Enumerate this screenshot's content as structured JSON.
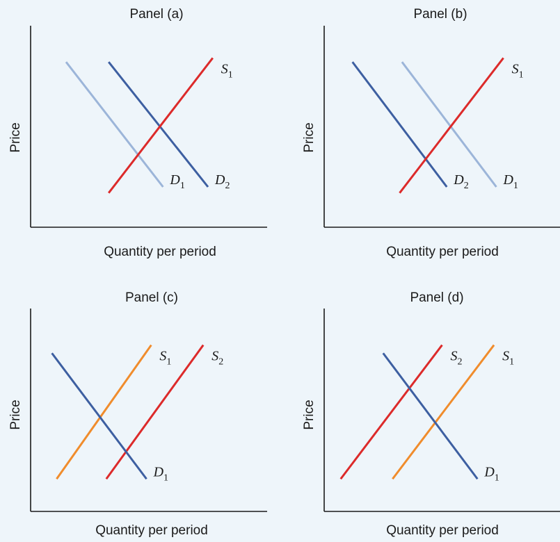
{
  "figure": {
    "colors": {
      "background": "#eef5fa",
      "axis": "#1a1a1a"
    }
  },
  "chart_data": [
    {
      "type": "line",
      "title": "Panel (a)",
      "xlabel": "Quantity per period",
      "ylabel": "Price",
      "grid": false,
      "xlim": [
        0,
        10
      ],
      "ylim": [
        0,
        10
      ],
      "series": [
        {
          "name": "D1",
          "label_main": "D",
          "label_sub": "1",
          "color": "#9cb5d9",
          "x": [
            1.5,
            5.6
          ],
          "y": [
            8.2,
            2.0
          ]
        },
        {
          "name": "D2",
          "label_main": "D",
          "label_sub": "2",
          "color": "#3d5fa1",
          "x": [
            3.3,
            7.5
          ],
          "y": [
            8.2,
            2.0
          ]
        },
        {
          "name": "S1",
          "label_main": "S",
          "label_sub": "1",
          "color": "#dc2a2a",
          "x": [
            3.3,
            7.7
          ],
          "y": [
            1.7,
            8.4
          ]
        }
      ]
    },
    {
      "type": "line",
      "title": "Panel (b)",
      "xlabel": "Quantity per period",
      "ylabel": "Price",
      "grid": false,
      "xlim": [
        0,
        10
      ],
      "ylim": [
        0,
        10
      ],
      "series": [
        {
          "name": "D2",
          "label_main": "D",
          "label_sub": "2",
          "color": "#3d5fa1",
          "x": [
            1.2,
            5.2
          ],
          "y": [
            8.2,
            2.0
          ]
        },
        {
          "name": "D1",
          "label_main": "D",
          "label_sub": "1",
          "color": "#9cb5d9",
          "x": [
            3.3,
            7.3
          ],
          "y": [
            8.2,
            2.0
          ]
        },
        {
          "name": "S1",
          "label_main": "S",
          "label_sub": "1",
          "color": "#dc2a2a",
          "x": [
            3.2,
            7.6
          ],
          "y": [
            1.7,
            8.4
          ]
        }
      ]
    },
    {
      "type": "line",
      "title": "Panel (c)",
      "xlabel": "Quantity per period",
      "ylabel": "Price",
      "grid": false,
      "xlim": [
        0,
        10
      ],
      "ylim": [
        0,
        10
      ],
      "series": [
        {
          "name": "S1",
          "label_main": "S",
          "label_sub": "1",
          "color": "#f08c2c",
          "x": [
            1.1,
            5.1
          ],
          "y": [
            1.6,
            8.2
          ]
        },
        {
          "name": "S2",
          "label_main": "S",
          "label_sub": "2",
          "color": "#dc2a2a",
          "x": [
            3.2,
            7.3
          ],
          "y": [
            1.6,
            8.2
          ]
        },
        {
          "name": "D1",
          "label_main": "D",
          "label_sub": "1",
          "color": "#3d5fa1",
          "x": [
            0.9,
            4.9
          ],
          "y": [
            7.8,
            1.6
          ]
        }
      ]
    },
    {
      "type": "line",
      "title": "Panel (d)",
      "xlabel": "Quantity per period",
      "ylabel": "Price",
      "grid": false,
      "xlim": [
        0,
        10
      ],
      "ylim": [
        0,
        10
      ],
      "series": [
        {
          "name": "S2",
          "label_main": "S",
          "label_sub": "2",
          "color": "#dc2a2a",
          "x": [
            0.7,
            5.0
          ],
          "y": [
            1.6,
            8.2
          ]
        },
        {
          "name": "S1",
          "label_main": "S",
          "label_sub": "1",
          "color": "#f08c2c",
          "x": [
            2.9,
            7.2
          ],
          "y": [
            1.6,
            8.2
          ]
        },
        {
          "name": "D1",
          "label_main": "D",
          "label_sub": "1",
          "color": "#3d5fa1",
          "x": [
            2.5,
            6.5
          ],
          "y": [
            7.8,
            1.6
          ]
        }
      ]
    }
  ]
}
